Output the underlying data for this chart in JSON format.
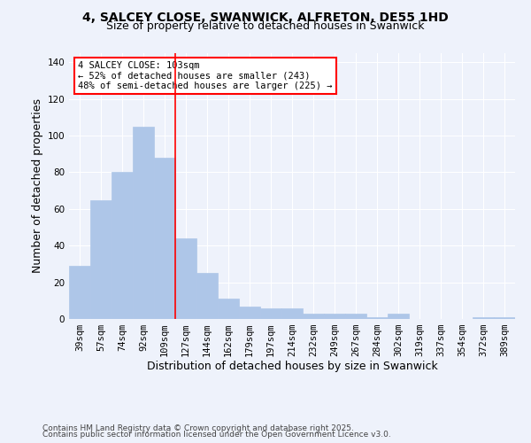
{
  "title": "4, SALCEY CLOSE, SWANWICK, ALFRETON, DE55 1HD",
  "subtitle": "Size of property relative to detached houses in Swanwick",
  "xlabel": "Distribution of detached houses by size in Swanwick",
  "ylabel": "Number of detached properties",
  "categories": [
    "39sqm",
    "57sqm",
    "74sqm",
    "92sqm",
    "109sqm",
    "127sqm",
    "144sqm",
    "162sqm",
    "179sqm",
    "197sqm",
    "214sqm",
    "232sqm",
    "249sqm",
    "267sqm",
    "284sqm",
    "302sqm",
    "319sqm",
    "337sqm",
    "354sqm",
    "372sqm",
    "389sqm"
  ],
  "values": [
    29,
    65,
    80,
    105,
    88,
    44,
    25,
    11,
    7,
    6,
    6,
    3,
    3,
    3,
    1,
    3,
    0,
    0,
    0,
    1,
    1
  ],
  "bar_color": "#aec6e8",
  "bar_edgecolor": "#aec6e8",
  "vline_x": 4.5,
  "vline_color": "red",
  "annotation_line1": "4 SALCEY CLOSE: 103sqm",
  "annotation_line2": "← 52% of detached houses are smaller (243)",
  "annotation_line3": "48% of semi-detached houses are larger (225) →",
  "annotation_box_facecolor": "white",
  "annotation_box_edgecolor": "red",
  "ylim": [
    0,
    145
  ],
  "yticks": [
    0,
    20,
    40,
    60,
    80,
    100,
    120,
    140
  ],
  "footnote1": "Contains HM Land Registry data © Crown copyright and database right 2025.",
  "footnote2": "Contains public sector information licensed under the Open Government Licence v3.0.",
  "background_color": "#eef2fb",
  "grid_color": "white",
  "title_fontsize": 10,
  "subtitle_fontsize": 9,
  "axis_label_fontsize": 9,
  "tick_fontsize": 7.5,
  "annotation_fontsize": 7.5,
  "footnote_fontsize": 6.5
}
